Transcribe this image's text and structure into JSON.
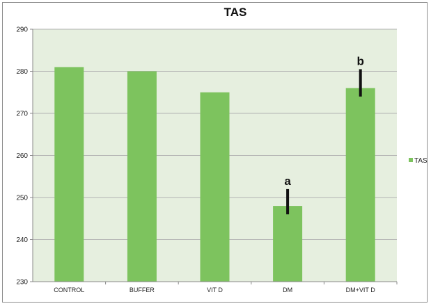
{
  "chart_data": {
    "type": "bar",
    "title": "TAS",
    "categories": [
      "CONTROL",
      "BUFFER",
      "VIT D",
      "DM",
      "DM+VIT D"
    ],
    "series": [
      {
        "name": "TAS",
        "values": [
          281,
          280,
          275,
          248,
          276
        ]
      }
    ],
    "error_bars": [
      null,
      null,
      null,
      [
        246,
        252
      ],
      [
        274,
        280.5
      ]
    ],
    "annotations": [
      "",
      "",
      "",
      "a",
      "b"
    ],
    "ylim": [
      230,
      290
    ],
    "yticks": [
      230,
      240,
      250,
      260,
      270,
      280,
      290
    ],
    "grid": true,
    "legend_position": "right",
    "colors": {
      "bar": "#7dc35e",
      "plot_bg": "#e6efdf",
      "grid": "#b3b3b3",
      "error_bar": "#111111"
    }
  }
}
